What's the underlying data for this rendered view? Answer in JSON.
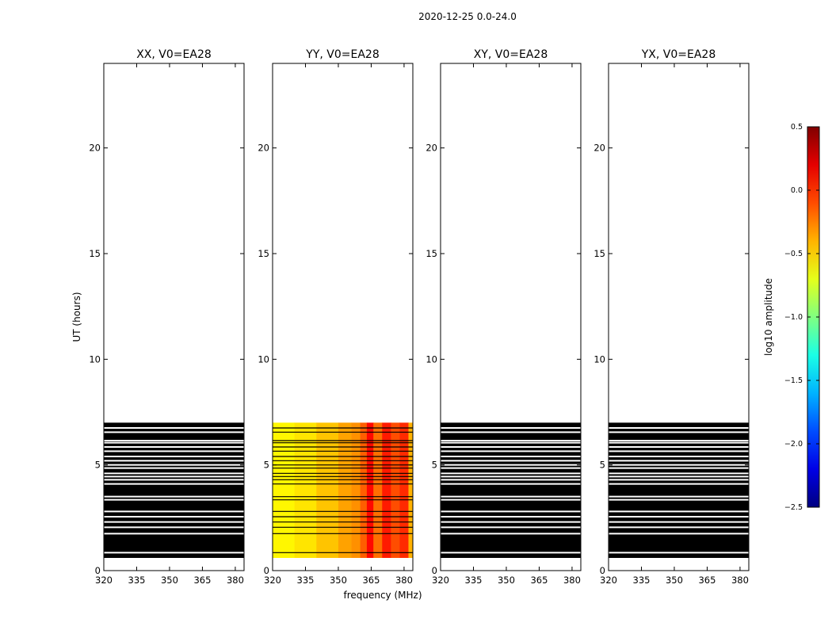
{
  "figure_title": "2020-12-25 0.0-24.0",
  "chart_data": {
    "type": "heatmap",
    "ylabel": "UT (hours)",
    "xlabel": "frequency (MHz)",
    "xlim": [
      320,
      384
    ],
    "ylim": [
      0,
      24
    ],
    "xticks": [
      320,
      335,
      350,
      365,
      380
    ],
    "yticks": [
      0,
      5,
      10,
      15,
      20
    ],
    "data_hours": [
      0.6,
      7.0
    ],
    "flag_gap_hours": [
      0.85,
      1.75,
      2.05,
      2.3,
      2.55,
      2.8,
      3.35,
      3.5,
      4.1,
      4.3,
      4.45,
      4.6,
      4.85,
      5.0,
      5.2,
      5.4,
      5.65,
      5.85,
      6.05,
      6.15,
      6.55,
      6.75
    ],
    "panels": [
      {
        "title": "XX, V0=EA28",
        "flagged": true
      },
      {
        "title": "YY, V0=EA28",
        "flagged": false
      },
      {
        "title": "XY, V0=EA28",
        "flagged": true
      },
      {
        "title": "YX, V0=EA28",
        "flagged": true
      }
    ],
    "yy_amplitude": {
      "freq_bins_MHz": [
        320,
        330,
        340,
        350,
        356,
        360,
        363,
        366,
        370,
        374,
        378,
        382,
        384
      ],
      "log10_amp": [
        -0.6,
        -0.55,
        -0.45,
        -0.35,
        -0.3,
        -0.15,
        0.1,
        -0.2,
        0.05,
        -0.1,
        0.0,
        -0.4
      ]
    },
    "colorbar": {
      "label": "log10 amplitude",
      "range": [
        -2.5,
        0.5
      ],
      "ticks": [
        0.5,
        0.0,
        -0.5,
        -1.0,
        -1.5,
        -2.0,
        -2.5
      ],
      "tick_labels": [
        "0.5",
        "0.0",
        "−0.5",
        "−1.0",
        "−1.5",
        "−2.0",
        "−2.5"
      ],
      "colormap": "jet"
    }
  }
}
